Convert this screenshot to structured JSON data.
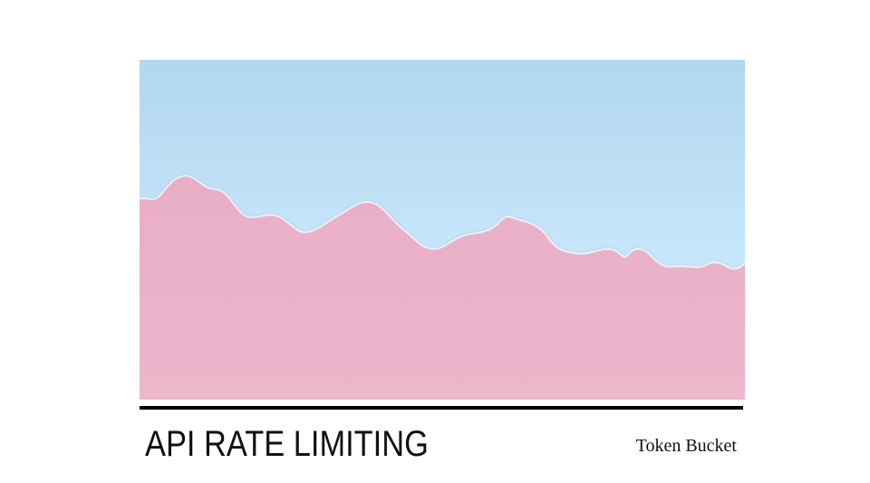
{
  "slide": {
    "title": "API RATE LIMITING",
    "subtitle": "Token Bucket"
  },
  "colors": {
    "sky_top": "#b1d6ef",
    "sky_bottom": "#c8e8fb",
    "ground": "#ebb4ca",
    "ground_shadow": "#d99ab4",
    "rule": "#000000",
    "text": "#111111"
  }
}
